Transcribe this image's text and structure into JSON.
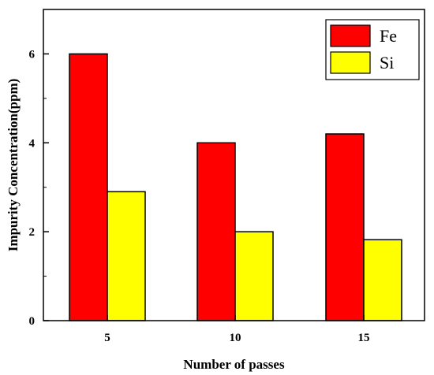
{
  "chart_data": {
    "type": "bar",
    "title": "",
    "xlabel": "Number of passes",
    "ylabel": "Impurity Concentration(ppm)",
    "categories": [
      "5",
      "10",
      "15"
    ],
    "series": [
      {
        "name": "Fe",
        "values": [
          6.0,
          4.0,
          4.2
        ],
        "color": "#ff0000"
      },
      {
        "name": "Si",
        "values": [
          2.9,
          2.0,
          1.82
        ],
        "color": "#ffff00"
      }
    ],
    "ylim": [
      0,
      7
    ],
    "yticks": [
      0,
      2,
      4,
      6
    ],
    "yticklabels": [
      "0",
      "2",
      "4",
      "6"
    ],
    "grid": false,
    "legend_position": "top-right"
  }
}
